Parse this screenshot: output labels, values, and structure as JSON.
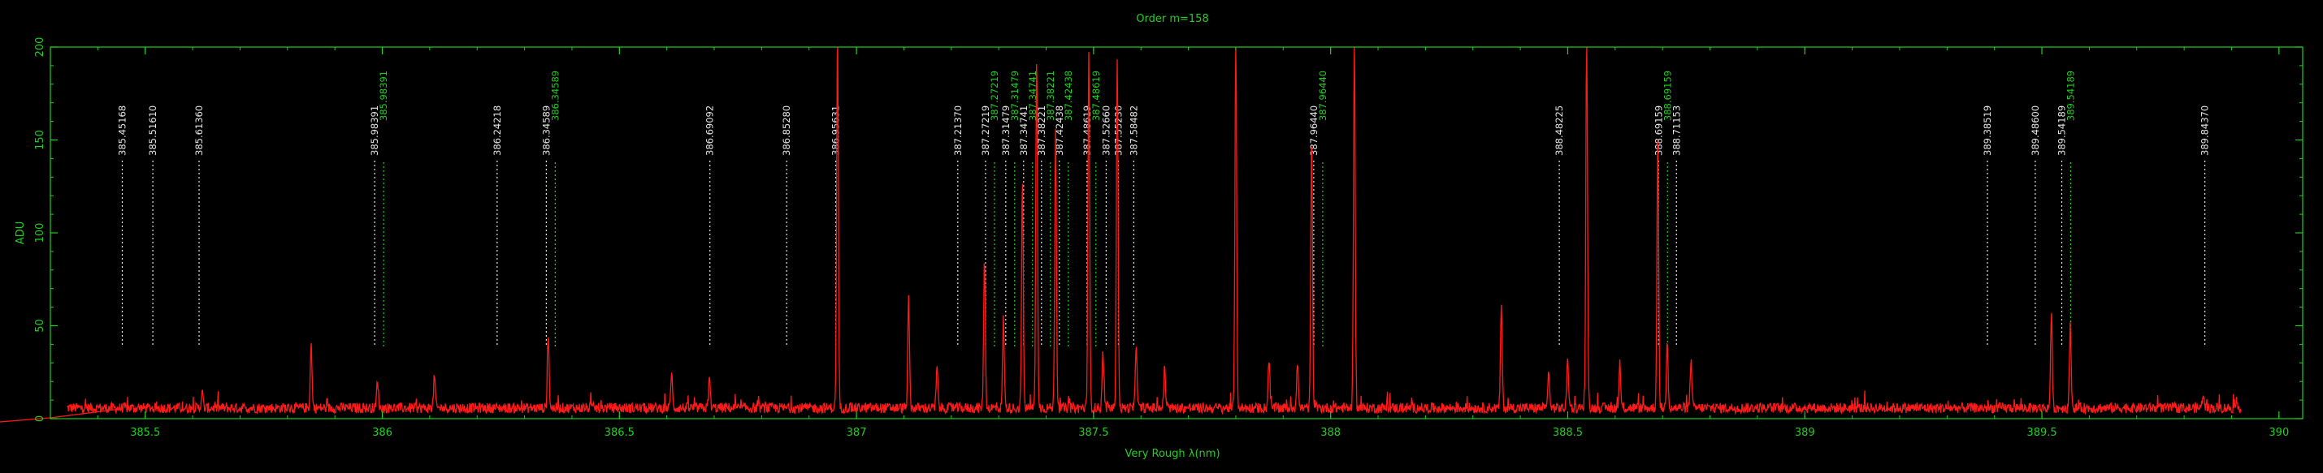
{
  "chart_data": {
    "type": "line",
    "title": "Order m=158",
    "xlabel": "Very Rough λ(nm)",
    "ylabel": "ADU",
    "xlim": [
      385.3,
      390.05
    ],
    "ylim": [
      0,
      200
    ],
    "xticks": [
      385.5,
      386,
      386.5,
      387,
      387.5,
      388,
      388.5,
      389,
      389.5,
      390
    ],
    "xtick_labels": [
      "385.5",
      "386",
      "386.5",
      "387",
      "387.5",
      "388",
      "388.5",
      "389",
      "389.5",
      "390"
    ],
    "yticks": [
      0,
      50,
      100,
      150,
      200
    ],
    "ytick_labels": [
      "0",
      "50",
      "100",
      "150",
      "200"
    ],
    "grid": false,
    "colors": {
      "axes": "#1fd21f",
      "spectrum": "#ff1a1a",
      "line_white": "#e8e8e8",
      "line_green": "#1fd21f",
      "background": "#000000"
    },
    "reference_lines": [
      {
        "x": 385.45168,
        "label": "385.45168",
        "color": "white"
      },
      {
        "x": 385.5161,
        "label": "385.51610",
        "color": "white"
      },
      {
        "x": 385.6136,
        "label": "385.61360",
        "color": "white"
      },
      {
        "x": 385.98391,
        "label": "385.98391",
        "color": "white"
      },
      {
        "x": 385.98391,
        "label": "385.98391",
        "color": "green"
      },
      {
        "x": 386.24218,
        "label": "386.24218",
        "color": "white"
      },
      {
        "x": 386.34589,
        "label": "386.34589",
        "color": "white"
      },
      {
        "x": 386.34589,
        "label": "386.34589",
        "color": "green"
      },
      {
        "x": 386.69092,
        "label": "386.69092",
        "color": "white"
      },
      {
        "x": 386.8528,
        "label": "386.85280",
        "color": "white"
      },
      {
        "x": 386.95631,
        "label": "386.95631",
        "color": "white"
      },
      {
        "x": 387.2137,
        "label": "387.21370",
        "color": "white"
      },
      {
        "x": 387.27219,
        "label": "387.27219",
        "color": "white"
      },
      {
        "x": 387.27219,
        "label": "387.27219",
        "color": "green"
      },
      {
        "x": 387.31479,
        "label": "387.31479",
        "color": "white"
      },
      {
        "x": 387.31479,
        "label": "387.31479",
        "color": "green"
      },
      {
        "x": 387.34741,
        "label": "387.34741",
        "color": "white"
      },
      {
        "x": 387.34741,
        "label": "387.34741",
        "color": "green"
      },
      {
        "x": 387.38221,
        "label": "387.38221",
        "color": "white"
      },
      {
        "x": 387.38221,
        "label": "387.38221",
        "color": "green"
      },
      {
        "x": 387.42438,
        "label": "387.42438",
        "color": "white"
      },
      {
        "x": 387.42438,
        "label": "387.42438",
        "color": "green"
      },
      {
        "x": 387.48619,
        "label": "387.48619",
        "color": "white"
      },
      {
        "x": 387.48619,
        "label": "387.48619",
        "color": "green"
      },
      {
        "x": 387.5266,
        "label": "387.52660",
        "color": "white"
      },
      {
        "x": 387.5523,
        "label": "387.55230",
        "color": "white"
      },
      {
        "x": 387.58482,
        "label": "387.58482",
        "color": "white"
      },
      {
        "x": 387.9644,
        "label": "387.96440",
        "color": "white"
      },
      {
        "x": 387.9644,
        "label": "387.96440",
        "color": "green"
      },
      {
        "x": 388.48225,
        "label": "388.48225",
        "color": "white"
      },
      {
        "x": 388.69159,
        "label": "388.69159",
        "color": "white"
      },
      {
        "x": 388.69159,
        "label": "388.69159",
        "color": "green"
      },
      {
        "x": 388.71153,
        "label": "388.71153",
        "color": "white"
      },
      {
        "x": 389.38519,
        "label": "389.38519",
        "color": "white"
      },
      {
        "x": 389.486,
        "label": "389.48600",
        "color": "white"
      },
      {
        "x": 389.54189,
        "label": "389.54189",
        "color": "white"
      },
      {
        "x": 389.54189,
        "label": "389.54189",
        "color": "green"
      },
      {
        "x": 389.8437,
        "label": "389.84370",
        "color": "white"
      }
    ],
    "series": [
      {
        "baseline": 5,
        "peaks": [
          {
            "x": 385.33,
            "y": 2
          },
          {
            "x": 385.62,
            "y": 9
          },
          {
            "x": 385.85,
            "y": 34
          },
          {
            "x": 385.99,
            "y": 15
          },
          {
            "x": 386.11,
            "y": 17
          },
          {
            "x": 386.35,
            "y": 40
          },
          {
            "x": 386.61,
            "y": 19
          },
          {
            "x": 386.69,
            "y": 16
          },
          {
            "x": 386.96,
            "y": 200
          },
          {
            "x": 387.11,
            "y": 58
          },
          {
            "x": 387.17,
            "y": 22
          },
          {
            "x": 387.27,
            "y": 80
          },
          {
            "x": 387.31,
            "y": 48
          },
          {
            "x": 387.35,
            "y": 122
          },
          {
            "x": 387.38,
            "y": 190
          },
          {
            "x": 387.42,
            "y": 150
          },
          {
            "x": 387.49,
            "y": 190
          },
          {
            "x": 387.52,
            "y": 30
          },
          {
            "x": 387.55,
            "y": 190
          },
          {
            "x": 387.59,
            "y": 35
          },
          {
            "x": 387.65,
            "y": 22
          },
          {
            "x": 387.8,
            "y": 200
          },
          {
            "x": 387.87,
            "y": 27
          },
          {
            "x": 387.93,
            "y": 25
          },
          {
            "x": 387.96,
            "y": 145
          },
          {
            "x": 388.05,
            "y": 200
          },
          {
            "x": 388.36,
            "y": 55
          },
          {
            "x": 388.46,
            "y": 20
          },
          {
            "x": 388.5,
            "y": 28
          },
          {
            "x": 388.54,
            "y": 200
          },
          {
            "x": 388.61,
            "y": 22
          },
          {
            "x": 388.69,
            "y": 145
          },
          {
            "x": 388.71,
            "y": 36
          },
          {
            "x": 388.76,
            "y": 26
          },
          {
            "x": 389.52,
            "y": 50
          },
          {
            "x": 389.56,
            "y": 45
          },
          {
            "x": 389.84,
            "y": 8
          }
        ]
      }
    ]
  }
}
